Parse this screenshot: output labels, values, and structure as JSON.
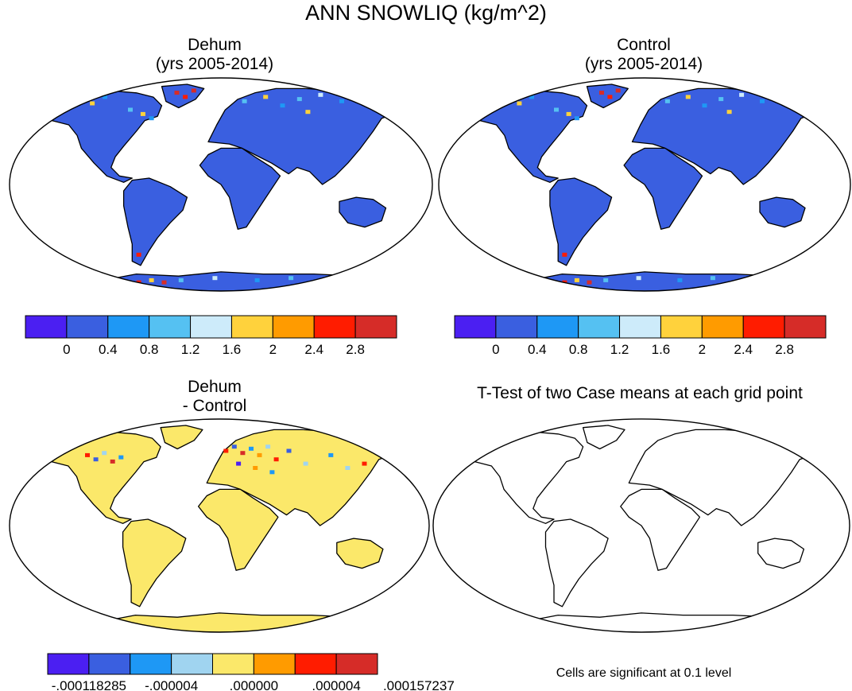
{
  "figure": {
    "title": "ANN SNOWLIQ (kg/m^2)",
    "note": "Cells are significant at 0.1 level"
  },
  "colors": {
    "land_base": "#3a5fe0",
    "diff_land": "#fbe86a",
    "ocean": "#ffffff",
    "coast": "#000000"
  },
  "chart_data": [
    {
      "type": "heatmap",
      "title": "Dehum",
      "subtitle": "(yrs 2005-2014)",
      "projection": "Robinson",
      "variable": "SNOWLIQ",
      "units": "kg/m^2",
      "period": "2005-2014",
      "colorbar": {
        "colors": [
          "#4b1ff2",
          "#3a5fe0",
          "#1e98f5",
          "#55c1f2",
          "#cdebfa",
          "#ffd23c",
          "#ff9b00",
          "#ff1c00",
          "#d62c28"
        ],
        "labels": [
          "0",
          "0.4",
          "0.8",
          "1.2",
          "1.6",
          "2",
          "2.4",
          "2.8"
        ]
      }
    },
    {
      "type": "heatmap",
      "title": "Control",
      "subtitle": "(yrs 2005-2014)",
      "projection": "Robinson",
      "variable": "SNOWLIQ",
      "units": "kg/m^2",
      "period": "2005-2014",
      "colorbar": {
        "colors": [
          "#4b1ff2",
          "#3a5fe0",
          "#1e98f5",
          "#55c1f2",
          "#cdebfa",
          "#ffd23c",
          "#ff9b00",
          "#ff1c00",
          "#d62c28"
        ],
        "labels": [
          "0",
          "0.4",
          "0.8",
          "1.2",
          "1.6",
          "2",
          "2.4",
          "2.8"
        ]
      }
    },
    {
      "type": "heatmap",
      "title": "Dehum",
      "subtitle": "- Control",
      "projection": "Robinson",
      "colorbar": {
        "colors": [
          "#4b1ff2",
          "#3a5fe0",
          "#1e98f5",
          "#a0d4f0",
          "#fbe86a",
          "#ff9b00",
          "#ff1c00",
          "#d62c28"
        ],
        "labels": [
          "-.000118285",
          "-.000004",
          ".000000",
          ".000004",
          ".000157237"
        ]
      }
    },
    {
      "type": "heatmap",
      "title": "T-Test of two Case means at each grid point",
      "projection": "Robinson"
    }
  ]
}
